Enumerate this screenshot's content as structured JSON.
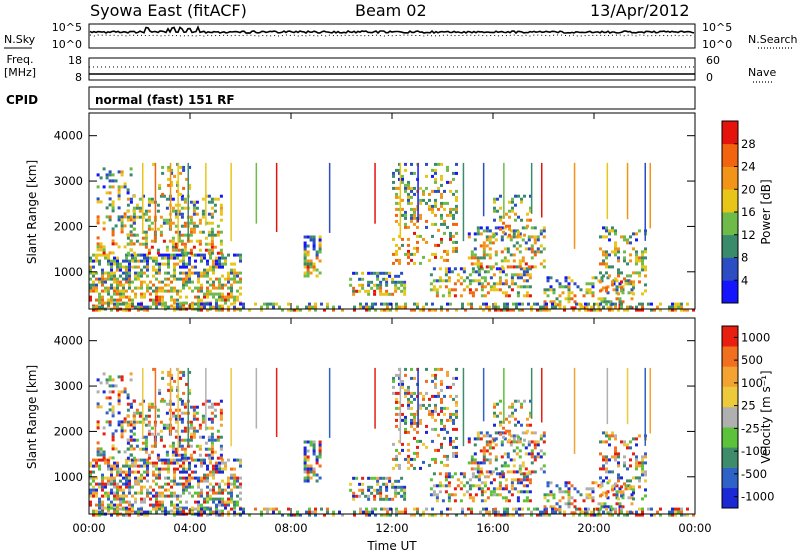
{
  "header": {
    "station": "Syowa East (fitACF)",
    "beam": "Beam 02",
    "date": "13/Apr/2012"
  },
  "aux_panel": {
    "nsky_label": "N.Sky",
    "nsky_ticks": [
      "10^5",
      "10^0"
    ],
    "nsearch_label": "N.Search",
    "nsearch_ticks": [
      "10^5",
      "10^0"
    ],
    "freq_label": "Freq.",
    "freq_unit": "[MHz]",
    "freq_ticks": [
      "18",
      "8"
    ],
    "nave_label": "Nave",
    "nave_ticks": [
      "60",
      "0"
    ],
    "cpid_label": "CPID",
    "cpid_value": "normal (fast) 151 RF"
  },
  "chart_data": [
    {
      "type": "heatmap",
      "name": "power",
      "xlabel": "",
      "ylabel": "Slant Range [km]",
      "x_ticks": [
        "00:00",
        "04:00",
        "08:00",
        "12:00",
        "16:00",
        "20:00",
        "00:00"
      ],
      "y_ticks": [
        "1000",
        "2000",
        "3000",
        "4000"
      ],
      "xlim": [
        0,
        24
      ],
      "ylim": [
        180,
        4500
      ],
      "colorbar": {
        "label": "Power [dB]",
        "ticks": [
          "4",
          "8",
          "12",
          "16",
          "20",
          "24",
          "28"
        ],
        "colors": [
          "#1414ff",
          "#2c4ec2",
          "#3a8a6c",
          "#6fbb4a",
          "#e8c619",
          "#f29418",
          "#f26410",
          "#e4140c"
        ]
      }
    },
    {
      "type": "heatmap",
      "name": "velocity",
      "xlabel": "Time UT",
      "ylabel": "Slant Range [km]",
      "x_ticks": [
        "00:00",
        "04:00",
        "08:00",
        "12:00",
        "16:00",
        "20:00",
        "00:00"
      ],
      "y_ticks": [
        "1000",
        "2000",
        "3000",
        "4000"
      ],
      "xlim": [
        0,
        24
      ],
      "ylim": [
        180,
        4500
      ],
      "colorbar": {
        "label": "Velocity [m s⁻¹]",
        "ticks": [
          "1000",
          "500",
          "100",
          "25",
          "-25",
          "-100",
          "-500",
          "-1000"
        ],
        "colors": [
          "#1a28d6",
          "#2f62c6",
          "#3e8c6a",
          "#5cc23a",
          "#b0b0b0",
          "#ecca3c",
          "#f3a332",
          "#f07020",
          "#e81e10"
        ]
      }
    }
  ]
}
